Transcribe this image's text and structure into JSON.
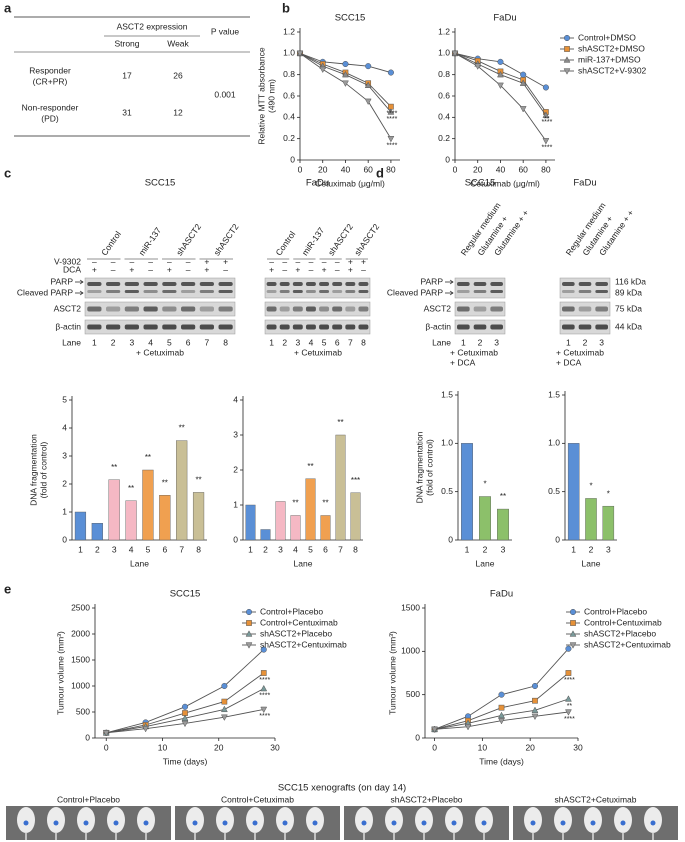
{
  "panel_labels": [
    "a",
    "b",
    "c",
    "d",
    "e"
  ],
  "table": {
    "group_header": "ASCT2 expression",
    "columns": [
      "Strong",
      "Weak"
    ],
    "p_header": "P value",
    "rows": [
      {
        "label": [
          "Responder",
          "(CR+PR)"
        ],
        "values": [
          17,
          26
        ]
      },
      {
        "label": [
          "Non-responder",
          "(PD)"
        ],
        "values": [
          31,
          12
        ]
      }
    ],
    "p_value": "0.001"
  },
  "chart_data": [
    {
      "type": "line",
      "title": "SCC15",
      "ylabel": [
        "Relative MTT absorbance",
        "(490 nm)"
      ],
      "xlabel": "Cetuximab (μg/ml)",
      "x": [
        0,
        20,
        40,
        60,
        80
      ],
      "xlim": [
        0,
        88
      ],
      "xticks": [
        0,
        20,
        40,
        60,
        80
      ],
      "ylim": [
        0,
        1.2
      ],
      "yticks": [
        0,
        0.2,
        0.4,
        0.6,
        0.8,
        {
          "value": 1,
          "label": "1.0"
        },
        1.2
      ],
      "series": [
        {
          "color": "#5a8fd6",
          "marker": "circle",
          "values": [
            1,
            0.92,
            0.9,
            0.88,
            0.82
          ]
        },
        {
          "color": "#e69138",
          "marker": "square",
          "values": [
            1,
            0.9,
            0.82,
            0.72,
            0.5
          ]
        },
        {
          "color": "#8a8a8a",
          "marker": "triangle",
          "values": [
            1,
            0.88,
            0.8,
            0.7,
            0.45
          ]
        },
        {
          "color": "#9a9a9a",
          "marker": "triangle-down",
          "values": [
            1,
            0.85,
            0.72,
            0.55,
            0.2
          ]
        }
      ],
      "annotations": [
        {
          "series": 1,
          "text": "****"
        },
        {
          "series": 2,
          "text": "****"
        },
        {
          "series": 3,
          "text": "****"
        }
      ]
    },
    {
      "type": "line",
      "title": "FaDu",
      "xlabel": "Cetuximab (μg/ml)",
      "legend": "right",
      "x": [
        0,
        20,
        40,
        60,
        80
      ],
      "xlim": [
        0,
        88
      ],
      "xticks": [
        0,
        20,
        40,
        60,
        80
      ],
      "ylim": [
        0,
        1.2
      ],
      "yticks": [
        0,
        0.2,
        0.4,
        0.6,
        0.8,
        {
          "value": 1,
          "label": "1.0"
        },
        1.2
      ],
      "series": [
        {
          "name": "Control+DMSO",
          "color": "#5a8fd6",
          "marker": "circle",
          "values": [
            1,
            0.95,
            0.92,
            0.8,
            0.68
          ]
        },
        {
          "name": "shASCT2+DMSO",
          "color": "#e69138",
          "marker": "square",
          "values": [
            1,
            0.93,
            0.83,
            0.75,
            0.45
          ]
        },
        {
          "name": "miR-137+DMSO",
          "color": "#8a8a8a",
          "marker": "triangle",
          "values": [
            1,
            0.9,
            0.8,
            0.72,
            0.42
          ]
        },
        {
          "name": "shASCT2+V-9302",
          "color": "#9a9a9a",
          "marker": "triangle-down",
          "values": [
            1,
            0.88,
            0.7,
            0.48,
            0.18
          ]
        }
      ],
      "annotations": [
        {
          "series": 1,
          "text": "**"
        },
        {
          "series": 2,
          "text": "****"
        },
        {
          "series": 3,
          "text": "****"
        }
      ]
    },
    {
      "type": "bar",
      "ylabel": [
        "DNA fragmentation",
        "(fold of control)"
      ],
      "xlabel": "Lane",
      "categories": [
        "1",
        "2",
        "3",
        "4",
        "5",
        "6",
        "7",
        "8"
      ],
      "values": [
        1,
        0.6,
        2.15,
        1.4,
        2.5,
        1.6,
        3.55,
        1.7
      ],
      "colors": [
        "#5a8fd6",
        "#5a8fd6",
        "#f5b8c4",
        "#f5b8c4",
        "#f0a050",
        "#f0a050",
        "#c9bf96",
        "#c9bf96"
      ],
      "stars": [
        null,
        null,
        "**",
        "**",
        "**",
        "**",
        "**",
        "**"
      ],
      "ylim": [
        0,
        5
      ],
      "yticks": [
        0,
        1,
        2,
        3,
        4,
        5
      ]
    },
    {
      "type": "bar",
      "xlabel": "Lane",
      "categories": [
        "1",
        "2",
        "3",
        "4",
        "5",
        "6",
        "7",
        "8"
      ],
      "values": [
        1,
        0.3,
        1.1,
        0.7,
        1.75,
        0.7,
        3,
        1.35
      ],
      "colors": [
        "#5a8fd6",
        "#5a8fd6",
        "#f5b8c4",
        "#f5b8c4",
        "#f0a050",
        "#f0a050",
        "#c9bf96",
        "#c9bf96"
      ],
      "stars": [
        null,
        null,
        null,
        "**",
        "**",
        "**",
        "**",
        "***"
      ],
      "ylim": [
        0,
        4
      ],
      "yticks": [
        0,
        1,
        2,
        3,
        4
      ]
    },
    {
      "type": "bar",
      "ylabel": [
        "DNA fragmentation",
        "(fold of control)"
      ],
      "xlabel": "Lane",
      "categories": [
        "1",
        "2",
        "3"
      ],
      "values": [
        1,
        0.45,
        0.32
      ],
      "colors": [
        "#5a8fd6",
        "#8cc06a",
        "#8cc06a"
      ],
      "stars": [
        null,
        "*",
        "**"
      ],
      "ylim": [
        0,
        1.5
      ],
      "yticks": [
        0,
        0.5,
        {
          "value": 1,
          "label": "1.0"
        },
        1.5
      ]
    },
    {
      "type": "bar",
      "xlabel": "Lane",
      "categories": [
        "1",
        "2",
        "3"
      ],
      "values": [
        1,
        0.43,
        0.35
      ],
      "colors": [
        "#5a8fd6",
        "#8cc06a",
        "#8cc06a"
      ],
      "stars": [
        null,
        "*",
        "*"
      ],
      "ylim": [
        0,
        1.5
      ],
      "yticks": [
        0,
        0.5,
        {
          "value": 1,
          "label": "1.0"
        },
        1.5
      ]
    },
    {
      "type": "line",
      "title": "SCC15",
      "ylabel": [
        "Tumour volume (mm³)"
      ],
      "xlabel": "Time (days)",
      "legend": "upper right",
      "x": [
        0,
        7,
        14,
        21,
        28
      ],
      "xlim": [
        -2,
        30
      ],
      "xticks": [
        0,
        10,
        20,
        30
      ],
      "ylim": [
        0,
        2500
      ],
      "yticks": [
        0,
        500,
        1000,
        1500,
        2000,
        2500
      ],
      "series": [
        {
          "name": "Control+Placebo",
          "color": "#5a8fd6",
          "marker": "circle",
          "values": [
            100,
            300,
            600,
            1000,
            1700
          ]
        },
        {
          "name": "Control+Centuximab",
          "color": "#e69138",
          "marker": "square",
          "values": [
            100,
            250,
            480,
            700,
            1250
          ]
        },
        {
          "name": "shASCT2+Placebo",
          "color": "#7a9a9a",
          "marker": "triangle",
          "values": [
            100,
            220,
            380,
            550,
            950
          ]
        },
        {
          "name": "shASCT2+Centuximab",
          "color": "#9a9a9a",
          "marker": "triangle-down",
          "values": [
            100,
            180,
            280,
            400,
            550
          ]
        }
      ],
      "annotations": [
        {
          "series": 1,
          "text": "****"
        },
        {
          "series": 2,
          "text": "****"
        },
        {
          "series": 3,
          "text": "****"
        }
      ]
    },
    {
      "type": "line",
      "title": "FaDu",
      "ylabel": [
        "Tumour volume (mm³)"
      ],
      "xlabel": "Time (days)",
      "legend": "upper right",
      "x": [
        0,
        7,
        14,
        21,
        28
      ],
      "xlim": [
        -2,
        30
      ],
      "xticks": [
        0,
        10,
        20,
        30
      ],
      "ylim": [
        0,
        1500
      ],
      "yticks": [
        0,
        500,
        1000,
        1500
      ],
      "series": [
        {
          "name": "Control+Placebo",
          "color": "#5a8fd6",
          "marker": "circle",
          "values": [
            100,
            250,
            500,
            600,
            1030
          ]
        },
        {
          "name": "Control+Centuximab",
          "color": "#e69138",
          "marker": "square",
          "values": [
            100,
            200,
            350,
            430,
            750
          ]
        },
        {
          "name": "shASCT2+Placebo",
          "color": "#7a9a9a",
          "marker": "triangle",
          "values": [
            100,
            170,
            260,
            320,
            450
          ]
        },
        {
          "name": "shASCT2+Centuximab",
          "color": "#9a9a9a",
          "marker": "triangle-down",
          "values": [
            100,
            130,
            200,
            250,
            300
          ]
        }
      ],
      "annotations": [
        {
          "series": 1,
          "text": "****"
        },
        {
          "series": 2,
          "text": "**"
        },
        {
          "series": 3,
          "text": "****"
        }
      ]
    }
  ],
  "blots": [
    {
      "title": "SCC15",
      "columns": [
        "Control",
        "miR-137",
        "shASCT2",
        "shASCT2"
      ],
      "treatments": [
        {
          "name": "V-9302",
          "signs": [
            "–",
            "–",
            "–",
            "–",
            "–",
            "–",
            "+",
            "+"
          ]
        },
        {
          "name": "DCA",
          "signs": [
            "+",
            "–",
            "+",
            "–",
            "+",
            "–",
            "+",
            "–"
          ]
        }
      ],
      "bands": [
        "PARP",
        "Cleaved PARP",
        "ASCT2",
        "β-actin"
      ],
      "lane_label": "Lane",
      "lanes": [
        "1",
        "2",
        "3",
        "4",
        "5",
        "6",
        "7",
        "8"
      ],
      "footer": [
        "+ Cetuximab"
      ]
    },
    {
      "title": "FaDu",
      "columns": [
        "Control",
        "miR-137",
        "shASCT2",
        "shASCT2"
      ],
      "treatments": [
        {
          "signs": [
            "–",
            "–",
            "–",
            "–",
            "–",
            "–",
            "+",
            "+"
          ]
        },
        {
          "signs": [
            "+",
            "–",
            "+",
            "–",
            "+",
            "–",
            "+",
            "–"
          ]
        }
      ],
      "lanes": [
        "1",
        "2",
        "3",
        "4",
        "5",
        "6",
        "7",
        "8"
      ],
      "footer": [
        "+ Cetuximab"
      ]
    },
    {
      "title": "SCC15",
      "columns": [
        "Regular medium",
        "Glutamine +",
        "Glutamine + +"
      ],
      "bands": [
        "PARP",
        "Cleaved PARP",
        "ASCT2",
        "β-actin"
      ],
      "lane_label": "Lane",
      "lanes": [
        "1",
        "2",
        "3"
      ],
      "footer": [
        "+ Cetuximab",
        "+ DCA"
      ]
    },
    {
      "title": "FaDu",
      "columns": [
        "Regular medium",
        "Glutamine +",
        "Glutamine + +"
      ],
      "kda": [
        "116 kDa",
        "89 kDa",
        "75 kDa",
        "44 kDa"
      ],
      "lanes": [
        "1",
        "2",
        "3"
      ],
      "footer": [
        "+ Cetuximab",
        "+ DCA"
      ]
    }
  ],
  "xenograft": {
    "title": "SCC15 xenografts (on day 14)",
    "groups": [
      "Control+Placebo",
      "Control+Cetuximab",
      "shASCT2+Placebo",
      "shASCT2+Cetuximab"
    ]
  }
}
